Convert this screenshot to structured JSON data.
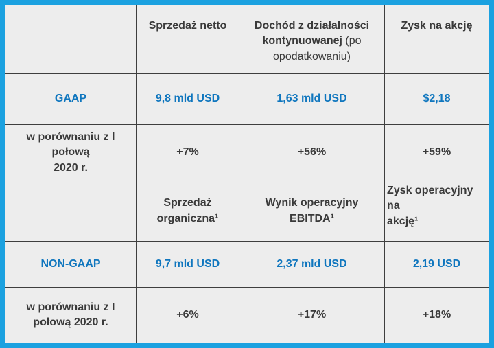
{
  "colors": {
    "frame_blue": "#1BA1E0",
    "grid_line": "#3F3F3F",
    "cell_background": "#EDEDED",
    "highlight_text_blue": "#0F76BE",
    "body_text_dark": "#3A3A3A"
  },
  "table": {
    "header": {
      "blank": "",
      "net_sales": "Sprzedaż netto",
      "income_bold": "Dochód z działalności kontynuowanej",
      "income_regular": "(po opodatkowaniu)",
      "eps": "Zysk na akcję"
    },
    "gaap_row": {
      "label": "GAAP",
      "net_sales": "9,8 mld USD",
      "income": "1,63 mld USD",
      "eps": "$2,18"
    },
    "gaap_compare_row": {
      "label": "w porównaniu z I połową\n2020 r.",
      "net_sales_change": "+7%",
      "income_change": "+56%",
      "eps_change": "+59%"
    },
    "nongaap_header": {
      "blank": "",
      "organic_sales": "Sprzedaż\norganiczna¹",
      "ebitda": "Wynik operacyjny\nEBITDA¹",
      "operating_eps": "Zysk operacyjny na\nakcję¹"
    },
    "nongaap_row": {
      "label": "NON-GAAP",
      "organic_sales": "9,7 mld USD",
      "ebitda": "2,37 mld USD",
      "operating_eps": "2,19 USD"
    },
    "nongaap_compare_row": {
      "label": "w porównaniu z I\npołową 2020 r.",
      "organic_sales_change": "+6%",
      "ebitda_change": "+17%",
      "operating_eps_change": "+18%"
    }
  }
}
